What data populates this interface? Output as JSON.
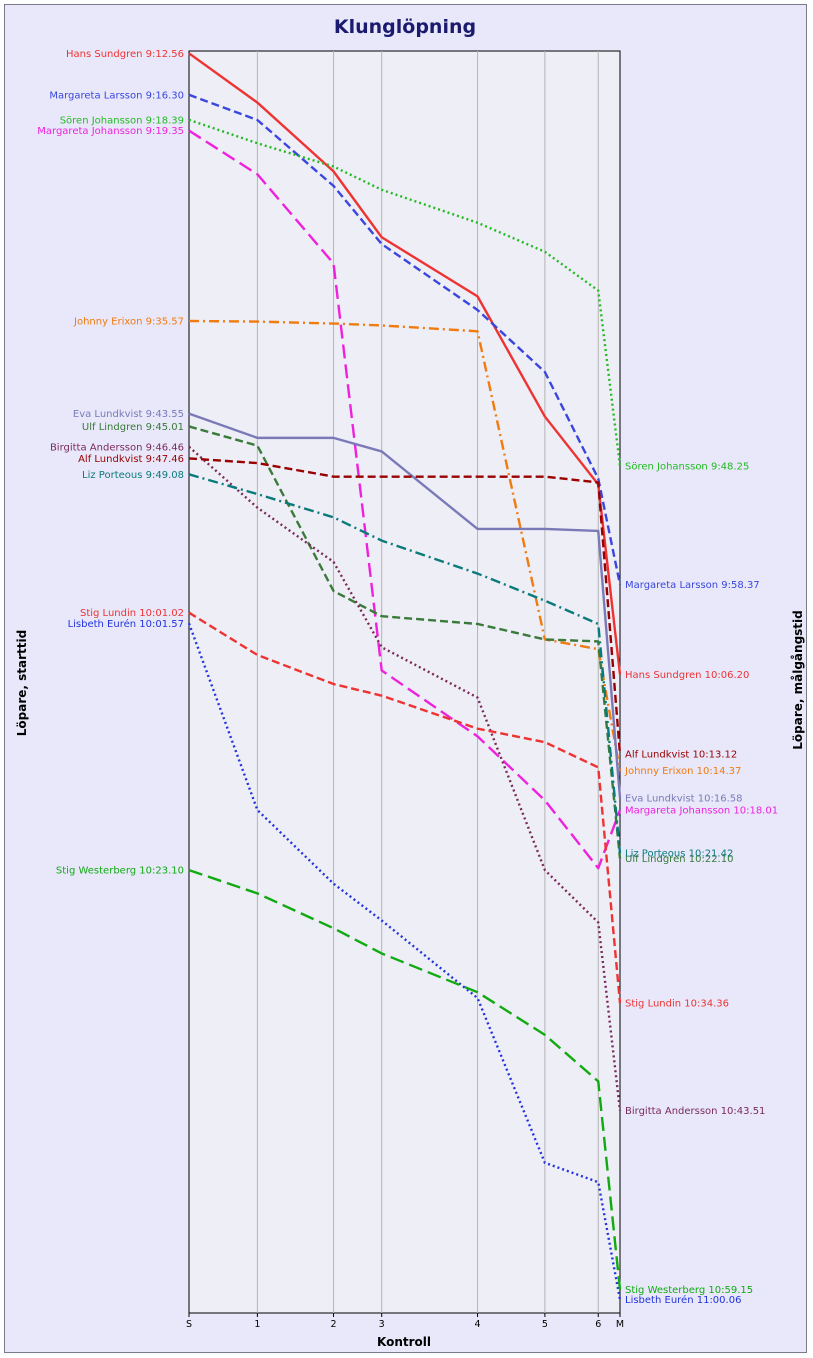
{
  "chart_data": {
    "type": "line",
    "title": "Klunglöpning",
    "xlabel": "Kontroll",
    "ylabel_left": "Löpare, starttid",
    "ylabel_right": "Löpare, målgångstid",
    "categories": [
      "S",
      "1",
      "2",
      "3",
      "4",
      "5",
      "6",
      "M"
    ],
    "x_positions": [
      0,
      1.32,
      2.79,
      3.72,
      5.57,
      6.87,
      7.9,
      8.32
    ],
    "y_unit": "seconds after 9:00:00",
    "ylim": [
      764,
      7275
    ],
    "grid": "vertical",
    "series": [
      {
        "name": "Hans Sundgren",
        "start_label": "Hans Sundgren 9:12.56",
        "end_label": "Hans Sundgren 10:06.20",
        "color": "#ee3333",
        "dash": "solid",
        "values": [
          776,
          1030,
          1385,
          1725,
          2030,
          2650,
          3000,
          3980
        ]
      },
      {
        "name": "Margareta Larsson",
        "start_label": "Margareta Larsson 9:16.30",
        "end_label": "Margareta Larsson 9:58.37",
        "color": "#3a46dd",
        "dash": "dashed",
        "values": [
          990,
          1120,
          1460,
          1760,
          2100,
          2420,
          2970,
          3517
        ]
      },
      {
        "name": "Sören Johansson",
        "start_label": "Sören Johansson 9:18.39",
        "end_label": "Sören Johansson 9:48.25",
        "color": "#22bb22",
        "dash": "dotted",
        "values": [
          1119,
          1240,
          1360,
          1480,
          1650,
          1800,
          2000,
          2905
        ]
      },
      {
        "name": "Margareta Johansson",
        "start_label": "Margareta Johansson 9:19.35",
        "end_label": "Margareta Johansson 10:18.01",
        "color": "#ee22dd",
        "dash": "longdash",
        "values": [
          1175,
          1400,
          1860,
          3960,
          4300,
          4630,
          4980,
          4681
        ]
      },
      {
        "name": "Johnny Erixon",
        "start_label": "Johnny Erixon 9:35.57",
        "end_label": "Johnny Erixon 10:14.37",
        "color": "#f07b10",
        "dash": "dashdot",
        "values": [
          2157,
          2160,
          2170,
          2180,
          2210,
          3800,
          3850,
          4477
        ]
      },
      {
        "name": "Eva Lundkvist",
        "start_label": "Eva Lundkvist 9:43.55",
        "end_label": "Eva Lundkvist 10:16.58",
        "color": "#7a7ab8",
        "dash": "solid",
        "values": [
          2635,
          2760,
          2760,
          2830,
          3230,
          3230,
          3240,
          4618
        ]
      },
      {
        "name": "Ulf Lindgren",
        "start_label": "Ulf Lindgren 9:45.01",
        "end_label": "Ulf Lindgren 10:22.10",
        "color": "#3a7a3a",
        "dash": "dashed",
        "values": [
          2701,
          2800,
          3550,
          3680,
          3720,
          3800,
          3810,
          4930
        ]
      },
      {
        "name": "Birgitta Andersson",
        "start_label": "Birgitta Andersson 9:46.46",
        "end_label": "Birgitta Andersson 10:43.51",
        "color": "#7a2a5a",
        "dash": "dotted",
        "values": [
          2806,
          3120,
          3400,
          3840,
          4100,
          4990,
          5260,
          6231
        ]
      },
      {
        "name": "Alf Lundkvist",
        "start_label": "Alf Lundkvist 9:47.46",
        "end_label": "Alf Lundkvist 10:13.12",
        "color": "#990000",
        "dash": "dashed",
        "values": [
          2866,
          2890,
          2960,
          2960,
          2960,
          2960,
          2990,
          4392
        ]
      },
      {
        "name": "Liz Porteous",
        "start_label": "Liz Porteous 9:49.08",
        "end_label": "Liz Porteous 10:21.42",
        "color": "#0a7a7a",
        "dash": "dashdot",
        "values": [
          2948,
          3050,
          3170,
          3290,
          3460,
          3600,
          3720,
          4902
        ]
      },
      {
        "name": "Stig Lundin",
        "start_label": "Stig Lundin 10:01.02",
        "end_label": "Stig Lundin 10:34.36",
        "color": "#ee3333",
        "dash": "dashed",
        "values": [
          3662,
          3880,
          4030,
          4090,
          4260,
          4330,
          4460,
          5676
        ]
      },
      {
        "name": "Lisbeth Eurén",
        "start_label": "Lisbeth Eurén 10:01.57",
        "end_label": "Lisbeth Eurén 11:00.06",
        "color": "#2233dd",
        "dash": "dotted",
        "values": [
          3717,
          4680,
          5060,
          5250,
          5650,
          6500,
          6600,
          7206
        ]
      },
      {
        "name": "Stig Westerberg",
        "start_label": "Stig Westerberg 10:23.10",
        "end_label": "Stig Westerberg 10:59.15",
        "color": "#11aa11",
        "dash": "longdash",
        "values": [
          4990,
          5110,
          5290,
          5420,
          5620,
          5840,
          6080,
          7155
        ]
      }
    ]
  }
}
